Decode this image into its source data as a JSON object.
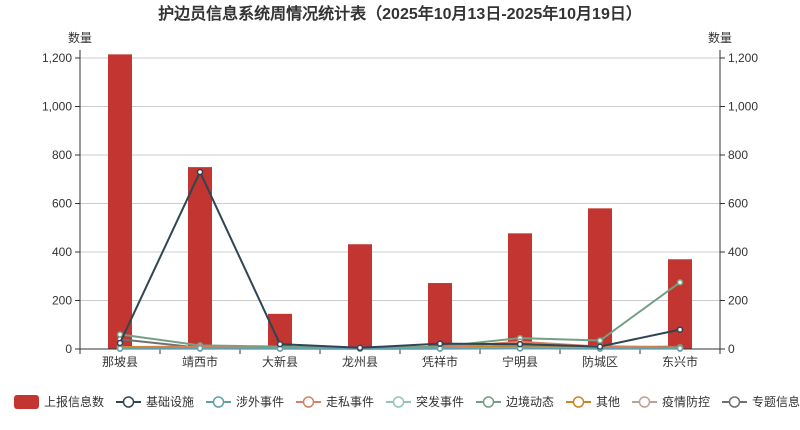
{
  "chart_data": {
    "type": "bar",
    "title": "护边员信息系统周情况统计表（2025年10月13日-2025年10月19日）",
    "ylabel": "数量",
    "y2label": "数量",
    "ylim": [
      0,
      1200
    ],
    "y2lim": [
      0,
      1200
    ],
    "yticks": [
      "0",
      "200",
      "400",
      "600",
      "800",
      "1,000",
      "1,200"
    ],
    "y2ticks": [
      "0",
      "200",
      "400",
      "600",
      "800",
      "1,000",
      "1,200"
    ],
    "grid": true,
    "legend_position": "bottom",
    "categories": [
      "那坡县",
      "靖西市",
      "大新县",
      "龙州县",
      "凭祥市",
      "宁明县",
      "防城区",
      "东兴市"
    ],
    "series": [
      {
        "name": "上报信息数",
        "kind": "bar",
        "color": "#c23531",
        "values": [
          1215,
          750,
          145,
          432,
          272,
          477,
          580,
          370
        ]
      },
      {
        "name": "基础设施",
        "kind": "line",
        "color": "#2f4554",
        "values": [
          25,
          730,
          20,
          5,
          22,
          20,
          10,
          80
        ]
      },
      {
        "name": "涉外事件",
        "kind": "line",
        "color": "#61a0a8",
        "values": [
          2,
          3,
          2,
          1,
          2,
          3,
          2,
          3
        ]
      },
      {
        "name": "走私事件",
        "kind": "line",
        "color": "#d48265",
        "values": [
          5,
          8,
          3,
          3,
          5,
          30,
          10,
          5
        ]
      },
      {
        "name": "突发事件",
        "kind": "line",
        "color": "#91c7ae",
        "values": [
          3,
          5,
          2,
          2,
          3,
          5,
          4,
          3
        ]
      },
      {
        "name": "边境动态",
        "kind": "line",
        "color": "#749f83",
        "values": [
          60,
          15,
          10,
          5,
          10,
          45,
          35,
          275
        ]
      },
      {
        "name": "其他",
        "kind": "line",
        "color": "#ca8622",
        "values": [
          8,
          10,
          5,
          4,
          6,
          15,
          12,
          6
        ]
      },
      {
        "name": "疫情防控",
        "kind": "line",
        "color": "#bda29a",
        "values": [
          1,
          1,
          1,
          1,
          1,
          2,
          1,
          1
        ]
      },
      {
        "name": "专题信息",
        "kind": "line",
        "color": "#6e7074",
        "values": [
          40,
          5,
          3,
          2,
          4,
          10,
          8,
          10
        ]
      }
    ]
  }
}
